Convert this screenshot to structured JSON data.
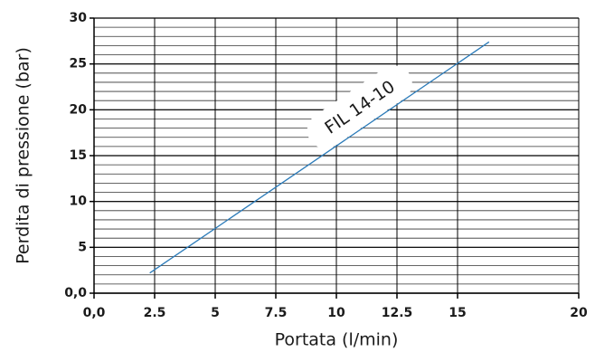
{
  "chart_data": {
    "type": "line",
    "x_label": "Portata (l/min)",
    "y_label": "Perdita di pressione (bar)",
    "xlim": [
      0,
      20
    ],
    "xticks": [
      {
        "value": 0,
        "label": "0,0"
      },
      2.5,
      5,
      7.5,
      10,
      12.5,
      15,
      20
    ],
    "ylim": [
      0,
      30
    ],
    "yticks": [
      {
        "value": 0,
        "label": "0,0"
      },
      5,
      10,
      15,
      20,
      25,
      30
    ],
    "y_minor_grid_step": 1,
    "grid": true,
    "series": [
      {
        "name": "FIL 14-10",
        "color": "#2b7bb9",
        "x": [
          2.3,
          16.3
        ],
        "values": [
          2.2,
          27.4
        ]
      }
    ]
  }
}
